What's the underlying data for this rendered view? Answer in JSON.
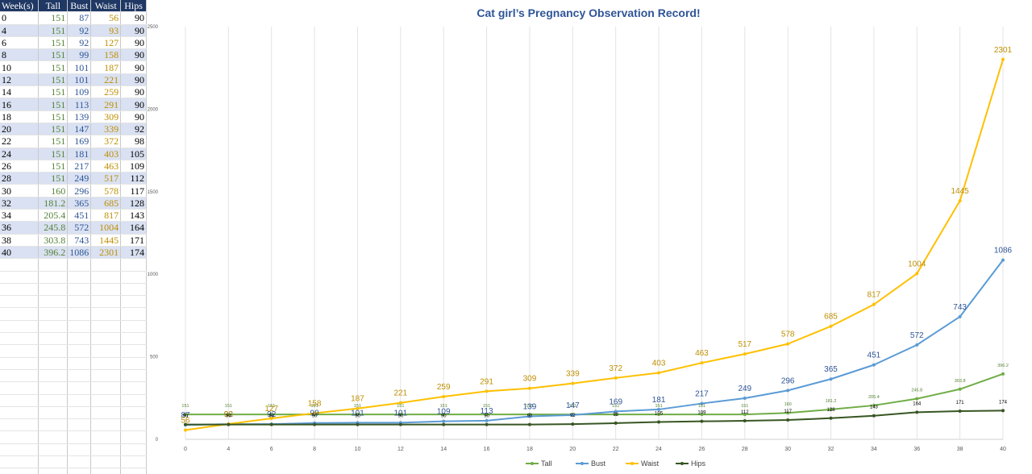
{
  "sheet": {
    "headers": [
      "Week(s)",
      "Tall",
      "Bust",
      "Waist",
      "Hips"
    ],
    "rows": [
      [
        "0",
        "151",
        "87",
        "56",
        "90"
      ],
      [
        "4",
        "151",
        "92",
        "93",
        "90"
      ],
      [
        "6",
        "151",
        "92",
        "127",
        "90"
      ],
      [
        "8",
        "151",
        "99",
        "158",
        "90"
      ],
      [
        "10",
        "151",
        "101",
        "187",
        "90"
      ],
      [
        "12",
        "151",
        "101",
        "221",
        "90"
      ],
      [
        "14",
        "151",
        "109",
        "259",
        "90"
      ],
      [
        "16",
        "151",
        "113",
        "291",
        "90"
      ],
      [
        "18",
        "151",
        "139",
        "309",
        "90"
      ],
      [
        "20",
        "151",
        "147",
        "339",
        "92"
      ],
      [
        "22",
        "151",
        "169",
        "372",
        "98"
      ],
      [
        "24",
        "151",
        "181",
        "403",
        "105"
      ],
      [
        "26",
        "151",
        "217",
        "463",
        "109"
      ],
      [
        "28",
        "151",
        "249",
        "517",
        "112"
      ],
      [
        "30",
        "160",
        "296",
        "578",
        "117"
      ],
      [
        "32",
        "181.2",
        "365",
        "685",
        "128"
      ],
      [
        "34",
        "205.4",
        "451",
        "817",
        "143"
      ],
      [
        "36",
        "245.8",
        "572",
        "1004",
        "164"
      ],
      [
        "38",
        "303.8",
        "743",
        "1445",
        "171"
      ],
      [
        "40",
        "396.2",
        "1086",
        "2301",
        "174"
      ]
    ]
  },
  "chart_data": {
    "type": "line",
    "title": "Cat girl’s Pregnancy Observation Record!",
    "xlabel": "",
    "ylabel": "",
    "x": [
      0,
      4,
      6,
      8,
      10,
      12,
      14,
      16,
      18,
      20,
      22,
      24,
      26,
      28,
      30,
      32,
      34,
      36,
      38,
      40
    ],
    "ylim": [
      0,
      2500
    ],
    "yticks": [
      0,
      500,
      1000,
      1500,
      2000,
      2500
    ],
    "grid": "vertical",
    "legend": "bottom",
    "series": [
      {
        "name": "Tall",
        "color": "#70ad47",
        "values": [
          151,
          151,
          151,
          151,
          151,
          151,
          151,
          151,
          151,
          151,
          151,
          151,
          151,
          151,
          160,
          181.2,
          205.4,
          245.8,
          303.8,
          396.2
        ]
      },
      {
        "name": "Bust",
        "color": "#5b9bd5",
        "values": [
          87,
          92,
          92,
          99,
          101,
          101,
          109,
          113,
          139,
          147,
          169,
          181,
          217,
          249,
          296,
          365,
          451,
          572,
          743,
          1086
        ]
      },
      {
        "name": "Waist",
        "color": "#ffc000",
        "values": [
          56,
          93,
          127,
          158,
          187,
          221,
          259,
          291,
          309,
          339,
          372,
          403,
          463,
          517,
          578,
          685,
          817,
          1004,
          1445,
          2301
        ]
      },
      {
        "name": "Hips",
        "color": "#375623",
        "values": [
          90,
          90,
          90,
          90,
          90,
          90,
          90,
          90,
          90,
          92,
          98,
          105,
          109,
          112,
          117,
          128,
          143,
          164,
          171,
          174
        ]
      }
    ],
    "label_colors": {
      "Tall": "#548235",
      "Bust": "#2f5597",
      "Waist": "#bf8f00",
      "Hips": "#000000"
    }
  }
}
